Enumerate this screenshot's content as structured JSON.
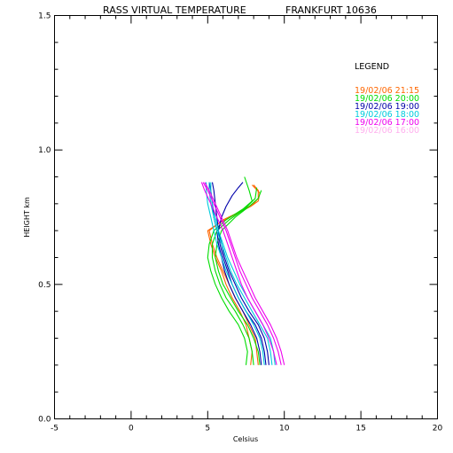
{
  "chart_data": {
    "type": "line",
    "title": "RASS VIRTUAL TEMPERATURE",
    "station": "FRANKFURT 10636",
    "xlabel": "Celsius",
    "ylabel": "HEIGHT km",
    "xlim": [
      -5,
      20
    ],
    "ylim": [
      0.0,
      1.5
    ],
    "xticks": [
      "-5",
      "0",
      "5",
      "10",
      "15",
      "20"
    ],
    "yticks": [
      "0.0",
      "0.5",
      "1.0",
      "1.5"
    ],
    "legend_title": "LEGEND",
    "legend_position": "top-right",
    "grid": false,
    "series": [
      {
        "name": "19/02/06 21:15",
        "color": "#ff6600",
        "profiles": [
          [
            [
              7.8,
              0.2
            ],
            [
              7.9,
              0.25
            ],
            [
              7.7,
              0.3
            ],
            [
              7.5,
              0.35
            ],
            [
              7.1,
              0.4
            ],
            [
              6.6,
              0.45
            ],
            [
              6.2,
              0.5
            ],
            [
              5.9,
              0.55
            ],
            [
              5.5,
              0.6
            ],
            [
              5.2,
              0.65
            ],
            [
              5.0,
              0.7
            ],
            [
              5.8,
              0.73
            ],
            [
              6.8,
              0.76
            ],
            [
              7.8,
              0.79
            ],
            [
              8.3,
              0.81
            ],
            [
              8.4,
              0.84
            ],
            [
              7.9,
              0.87
            ]
          ],
          [
            [
              8.3,
              0.2
            ],
            [
              8.2,
              0.25
            ],
            [
              8.1,
              0.3
            ],
            [
              7.7,
              0.35
            ],
            [
              7.3,
              0.4
            ],
            [
              6.8,
              0.45
            ],
            [
              6.4,
              0.5
            ],
            [
              6.0,
              0.55
            ],
            [
              5.6,
              0.6
            ],
            [
              5.3,
              0.65
            ],
            [
              5.1,
              0.7
            ],
            [
              6.0,
              0.74
            ],
            [
              7.1,
              0.77
            ],
            [
              8.0,
              0.8
            ],
            [
              8.3,
              0.82
            ],
            [
              8.3,
              0.85
            ],
            [
              8.0,
              0.87
            ]
          ]
        ]
      },
      {
        "name": "19/02/06 20:00",
        "color": "#00dd00",
        "profiles": [
          [
            [
              7.5,
              0.2
            ],
            [
              7.6,
              0.25
            ],
            [
              7.4,
              0.3
            ],
            [
              7.0,
              0.35
            ],
            [
              6.4,
              0.4
            ],
            [
              5.9,
              0.45
            ],
            [
              5.5,
              0.5
            ],
            [
              5.2,
              0.55
            ],
            [
              5.0,
              0.6
            ],
            [
              5.1,
              0.65
            ],
            [
              5.4,
              0.7
            ],
            [
              6.2,
              0.74
            ],
            [
              7.3,
              0.78
            ],
            [
              7.9,
              0.81
            ],
            [
              7.7,
              0.85
            ],
            [
              7.4,
              0.9
            ]
          ],
          [
            [
              8.0,
              0.2
            ],
            [
              7.9,
              0.25
            ],
            [
              7.7,
              0.3
            ],
            [
              7.3,
              0.35
            ],
            [
              6.8,
              0.4
            ],
            [
              6.2,
              0.45
            ],
            [
              5.8,
              0.5
            ],
            [
              5.5,
              0.55
            ],
            [
              5.3,
              0.6
            ],
            [
              5.3,
              0.65
            ],
            [
              5.6,
              0.7
            ],
            [
              6.4,
              0.74
            ],
            [
              7.4,
              0.78
            ],
            [
              8.1,
              0.82
            ],
            [
              8.2,
              0.86
            ]
          ],
          [
            [
              8.4,
              0.2
            ],
            [
              8.3,
              0.25
            ],
            [
              8.0,
              0.3
            ],
            [
              7.6,
              0.35
            ],
            [
              7.0,
              0.4
            ],
            [
              6.5,
              0.45
            ],
            [
              6.0,
              0.5
            ],
            [
              5.7,
              0.55
            ],
            [
              5.5,
              0.6
            ],
            [
              5.6,
              0.65
            ],
            [
              5.9,
              0.7
            ],
            [
              6.8,
              0.75
            ],
            [
              7.7,
              0.79
            ],
            [
              8.3,
              0.82
            ],
            [
              8.5,
              0.85
            ]
          ]
        ]
      },
      {
        "name": "19/02/06 19:00",
        "color": "#0000aa",
        "profiles": [
          [
            [
              8.5,
              0.2
            ],
            [
              8.4,
              0.25
            ],
            [
              8.2,
              0.3
            ],
            [
              7.8,
              0.35
            ],
            [
              7.3,
              0.4
            ],
            [
              6.8,
              0.45
            ],
            [
              6.4,
              0.5
            ],
            [
              6.1,
              0.55
            ],
            [
              5.9,
              0.6
            ],
            [
              5.7,
              0.65
            ],
            [
              5.6,
              0.7
            ],
            [
              5.4,
              0.75
            ],
            [
              5.3,
              0.8
            ],
            [
              5.2,
              0.85
            ],
            [
              5.1,
              0.88
            ]
          ],
          [
            [
              8.8,
              0.2
            ],
            [
              8.7,
              0.25
            ],
            [
              8.5,
              0.3
            ],
            [
              8.1,
              0.35
            ],
            [
              7.5,
              0.4
            ],
            [
              7.0,
              0.45
            ],
            [
              6.6,
              0.5
            ],
            [
              6.3,
              0.55
            ],
            [
              6.0,
              0.6
            ],
            [
              5.8,
              0.65
            ],
            [
              5.7,
              0.7
            ],
            [
              5.9,
              0.75
            ],
            [
              6.2,
              0.79
            ],
            [
              6.6,
              0.83
            ],
            [
              7.0,
              0.86
            ],
            [
              7.3,
              0.88
            ]
          ],
          [
            [
              9.0,
              0.2
            ],
            [
              8.9,
              0.25
            ],
            [
              8.7,
              0.3
            ],
            [
              8.3,
              0.35
            ],
            [
              7.7,
              0.4
            ],
            [
              7.2,
              0.45
            ],
            [
              6.8,
              0.5
            ],
            [
              6.4,
              0.55
            ],
            [
              6.1,
              0.6
            ],
            [
              5.9,
              0.65
            ],
            [
              5.7,
              0.7
            ],
            [
              5.6,
              0.75
            ],
            [
              5.5,
              0.8
            ],
            [
              5.4,
              0.85
            ],
            [
              5.3,
              0.88
            ]
          ]
        ]
      },
      {
        "name": "19/02/06 18:00",
        "color": "#00ccdd",
        "profiles": [
          [
            [
              8.7,
              0.2
            ],
            [
              8.6,
              0.25
            ],
            [
              8.4,
              0.3
            ],
            [
              8.0,
              0.35
            ],
            [
              7.5,
              0.4
            ],
            [
              7.0,
              0.45
            ],
            [
              6.6,
              0.5
            ],
            [
              6.2,
              0.55
            ],
            [
              5.9,
              0.6
            ],
            [
              5.6,
              0.65
            ],
            [
              5.4,
              0.7
            ],
            [
              5.2,
              0.75
            ],
            [
              5.0,
              0.8
            ],
            [
              4.9,
              0.85
            ],
            [
              4.9,
              0.88
            ]
          ],
          [
            [
              9.2,
              0.2
            ],
            [
              9.1,
              0.25
            ],
            [
              8.9,
              0.3
            ],
            [
              8.4,
              0.35
            ],
            [
              7.9,
              0.4
            ],
            [
              7.4,
              0.45
            ],
            [
              6.9,
              0.5
            ],
            [
              6.5,
              0.55
            ],
            [
              6.2,
              0.6
            ],
            [
              5.9,
              0.65
            ],
            [
              5.6,
              0.7
            ],
            [
              5.4,
              0.75
            ],
            [
              5.2,
              0.8
            ],
            [
              5.1,
              0.85
            ],
            [
              5.1,
              0.88
            ]
          ],
          [
            [
              9.4,
              0.2
            ],
            [
              9.3,
              0.25
            ],
            [
              9.1,
              0.3
            ],
            [
              8.6,
              0.35
            ],
            [
              8.1,
              0.4
            ],
            [
              7.6,
              0.45
            ],
            [
              7.1,
              0.5
            ],
            [
              6.7,
              0.55
            ],
            [
              6.3,
              0.6
            ],
            [
              6.0,
              0.65
            ],
            [
              5.7,
              0.7
            ],
            [
              5.5,
              0.75
            ],
            [
              5.3,
              0.8
            ],
            [
              5.2,
              0.85
            ],
            [
              5.2,
              0.88
            ]
          ]
        ]
      },
      {
        "name": "19/02/06 17:00",
        "color": "#ee00ee",
        "profiles": [
          [
            [
              9.5,
              0.2
            ],
            [
              9.3,
              0.25
            ],
            [
              9.0,
              0.3
            ],
            [
              8.6,
              0.35
            ],
            [
              8.1,
              0.4
            ],
            [
              7.6,
              0.45
            ],
            [
              7.2,
              0.5
            ],
            [
              6.9,
              0.55
            ],
            [
              6.6,
              0.6
            ],
            [
              6.3,
              0.65
            ],
            [
              6.0,
              0.7
            ],
            [
              5.6,
              0.75
            ],
            [
              5.2,
              0.8
            ],
            [
              4.8,
              0.85
            ],
            [
              4.6,
              0.88
            ]
          ],
          [
            [
              9.8,
              0.2
            ],
            [
              9.6,
              0.25
            ],
            [
              9.3,
              0.3
            ],
            [
              8.9,
              0.35
            ],
            [
              8.4,
              0.4
            ],
            [
              7.9,
              0.45
            ],
            [
              7.5,
              0.5
            ],
            [
              7.1,
              0.55
            ],
            [
              6.8,
              0.6
            ],
            [
              6.5,
              0.65
            ],
            [
              6.2,
              0.7
            ],
            [
              5.8,
              0.75
            ],
            [
              5.4,
              0.8
            ],
            [
              5.0,
              0.85
            ],
            [
              4.7,
              0.88
            ]
          ],
          [
            [
              10.0,
              0.2
            ],
            [
              9.8,
              0.25
            ],
            [
              9.5,
              0.3
            ],
            [
              9.1,
              0.35
            ],
            [
              8.6,
              0.4
            ],
            [
              8.1,
              0.45
            ],
            [
              7.7,
              0.5
            ],
            [
              7.3,
              0.55
            ],
            [
              6.9,
              0.6
            ],
            [
              6.6,
              0.65
            ],
            [
              6.3,
              0.7
            ],
            [
              5.9,
              0.75
            ],
            [
              5.5,
              0.8
            ],
            [
              5.1,
              0.85
            ],
            [
              4.8,
              0.88
            ]
          ]
        ]
      },
      {
        "name": "19/02/06 16:00",
        "color": "#ffb0ee",
        "profiles": []
      }
    ]
  }
}
